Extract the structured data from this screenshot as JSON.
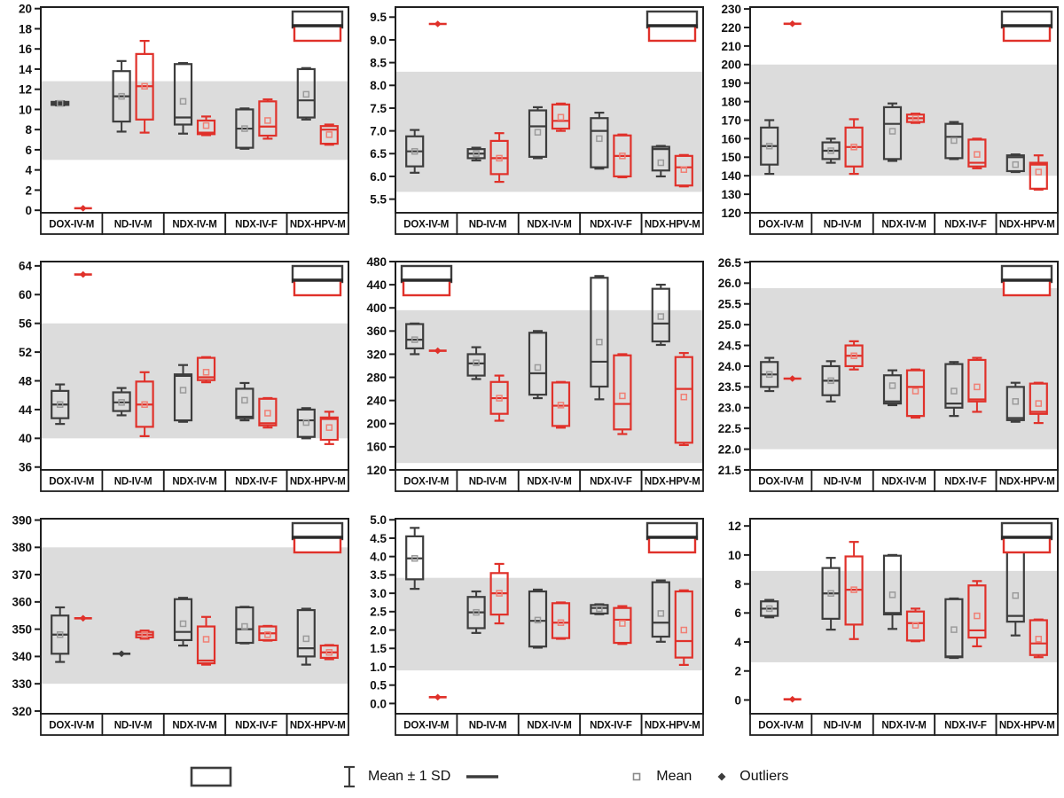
{
  "colors": {
    "black_series": "#3d3d3d",
    "red_series": "#e0312a",
    "band": "#dcdcdc",
    "axis": "#1f1f1f",
    "mean_marker_black": "#9b9b9b",
    "mean_marker_red": "#f08075",
    "label_text": "#111111"
  },
  "categories": [
    "DOX-IV-M",
    "ND-IV-M",
    "NDX-IV-M",
    "NDX-IV-F",
    "NDX-HPV-M"
  ],
  "legend": {
    "sd_label": "Mean ± 1 SD",
    "mean_label": "Mean",
    "outliers_label": "Outliers"
  },
  "box_format": "[whisker_lo, q1, median, mean, q3, whisker_hi] or {dash: value}",
  "chart_data": [
    {
      "type": "boxplot",
      "id": "plot-1",
      "row": 0,
      "col": 0,
      "ylim": [
        -0.25,
        20.15
      ],
      "yticks": [
        0,
        2,
        4,
        6,
        8,
        10,
        12,
        14,
        16,
        18,
        20
      ],
      "decimals": 0,
      "band": [
        5,
        12.8
      ],
      "inset": "tr",
      "series": [
        {
          "name": "black",
          "boxes": [
            [
              10.4,
              10.45,
              10.6,
              10.6,
              10.75,
              10.8
            ],
            [
              7.8,
              8.8,
              11.3,
              11.3,
              13.8,
              14.8
            ],
            [
              7.6,
              8.5,
              9.2,
              10.8,
              14.5,
              14.6
            ],
            [
              6.1,
              6.2,
              8.1,
              8.1,
              10.0,
              10.1
            ],
            [
              9.0,
              9.2,
              10.9,
              11.5,
              14.0,
              14.1
            ]
          ]
        },
        {
          "name": "red",
          "boxes": [
            {
              "dash": 0.2
            },
            [
              7.7,
              9.0,
              12.3,
              12.3,
              15.5,
              16.8
            ],
            [
              7.45,
              7.55,
              7.7,
              8.4,
              8.9,
              9.3
            ],
            [
              7.1,
              7.4,
              8.3,
              8.9,
              10.8,
              11.0
            ],
            [
              6.5,
              6.6,
              8.0,
              7.5,
              8.35,
              8.5
            ]
          ]
        }
      ]
    },
    {
      "type": "boxplot",
      "id": "plot-2",
      "row": 0,
      "col": 1,
      "ylim": [
        5.2,
        9.72
      ],
      "yticks": [
        5.5,
        6.0,
        6.5,
        7.0,
        7.5,
        8.0,
        8.5,
        9.0,
        9.5
      ],
      "decimals": 1,
      "band": [
        5.66,
        8.3
      ],
      "inset": "tr",
      "series": [
        {
          "name": "black",
          "boxes": [
            [
              6.08,
              6.22,
              6.55,
              6.55,
              6.88,
              7.02
            ],
            [
              6.35,
              6.4,
              6.5,
              6.5,
              6.6,
              6.63
            ],
            [
              6.4,
              6.43,
              7.1,
              6.97,
              7.45,
              7.52
            ],
            [
              6.17,
              6.2,
              7.0,
              6.83,
              7.28,
              7.4
            ],
            [
              6.0,
              6.13,
              6.6,
              6.3,
              6.65,
              6.67
            ]
          ]
        },
        {
          "name": "red",
          "boxes": [
            {
              "dash": 9.35
            },
            [
              5.88,
              6.05,
              6.4,
              6.4,
              6.78,
              6.95
            ],
            [
              7.0,
              7.05,
              7.22,
              7.3,
              7.58,
              7.6
            ],
            [
              5.98,
              6.0,
              6.45,
              6.45,
              6.9,
              6.92
            ],
            [
              5.78,
              5.8,
              6.2,
              6.15,
              6.45,
              6.47
            ]
          ]
        }
      ]
    },
    {
      "type": "boxplot",
      "id": "plot-3",
      "row": 0,
      "col": 2,
      "ylim": [
        120,
        231
      ],
      "yticks": [
        120,
        130,
        140,
        150,
        160,
        170,
        180,
        190,
        200,
        210,
        220,
        230
      ],
      "decimals": 0,
      "band": [
        140,
        200
      ],
      "inset": "tr",
      "series": [
        {
          "name": "black",
          "boxes": [
            [
              141,
              146,
              156,
              156,
              166,
              170
            ],
            [
              147,
              149,
              153.5,
              153.5,
              158,
              160
            ],
            [
              148,
              149,
              168,
              164,
              177,
              179
            ],
            [
              149,
              149.5,
              161,
              159,
              168,
              169
            ],
            [
              142,
              142.5,
              150,
              146,
              151,
              151.5
            ]
          ]
        },
        {
          "name": "red",
          "boxes": [
            {
              "dash": 222
            },
            [
              141,
              145,
              155.5,
              155.5,
              166,
              170.5
            ],
            [
              168.5,
              169,
              171,
              171,
              173,
              173.5
            ],
            [
              144,
              145,
              147,
              151.5,
              159.5,
              160
            ],
            [
              132.5,
              133,
              146,
              142,
              147,
              151
            ]
          ]
        }
      ]
    },
    {
      "type": "boxplot",
      "id": "plot-4",
      "row": 1,
      "col": 0,
      "ylim": [
        35.6,
        64.6
      ],
      "yticks": [
        36,
        40,
        44,
        48,
        52,
        56,
        60,
        64
      ],
      "decimals": 0,
      "band": [
        40,
        56
      ],
      "inset": "tr",
      "series": [
        {
          "name": "black",
          "boxes": [
            [
              42,
              42.8,
              44.7,
              44.7,
              46.6,
              47.5
            ],
            [
              43.2,
              43.8,
              45,
              45,
              46.4,
              47
            ],
            [
              42.3,
              42.5,
              48.7,
              46.7,
              48.9,
              50.2
            ],
            [
              42.5,
              42.8,
              43,
              45.3,
              46.9,
              47.7
            ],
            [
              40,
              40.2,
              42.5,
              42.2,
              44,
              44.2
            ]
          ]
        },
        {
          "name": "red",
          "boxes": [
            {
              "dash": 62.8
            },
            [
              40.3,
              41.6,
              44.7,
              44.7,
              47.9,
              49.2
            ],
            [
              47.8,
              48.1,
              48.5,
              49.2,
              51.2,
              51.3
            ],
            [
              41.5,
              41.8,
              42.1,
              43.5,
              45.5,
              45.6
            ],
            [
              39.2,
              39.8,
              42.7,
              41.5,
              42.9,
              43.7
            ]
          ]
        }
      ]
    },
    {
      "type": "boxplot",
      "id": "plot-5",
      "row": 1,
      "col": 1,
      "ylim": [
        120,
        480
      ],
      "yticks": [
        120,
        160,
        200,
        240,
        280,
        320,
        360,
        400,
        440,
        480
      ],
      "decimals": 0,
      "band": [
        132,
        396
      ],
      "inset": "tl",
      "series": [
        {
          "name": "black",
          "boxes": [
            [
              320,
              330,
              345,
              345,
              372,
              373
            ],
            [
              277,
              283,
              304,
              305,
              320,
              332
            ],
            [
              244,
              250,
              287,
              297,
              357,
              360
            ],
            [
              242,
              264,
              307,
              341,
              452,
              455
            ],
            [
              336,
              342,
              373,
              385,
              433,
              440
            ]
          ]
        },
        {
          "name": "red",
          "boxes": [
            {
              "dash": 326
            },
            [
              205,
              217,
              244,
              244,
              272,
              283
            ],
            [
              193,
              196,
              231,
              232,
              271,
              272
            ],
            [
              182,
              190,
              234,
              248,
              318,
              320
            ],
            [
              163,
              167,
              260,
              246,
              315,
              322
            ]
          ]
        }
      ]
    },
    {
      "type": "boxplot",
      "id": "plot-6",
      "row": 1,
      "col": 2,
      "ylim": [
        21.5,
        26.52
      ],
      "yticks": [
        21.5,
        22.0,
        22.5,
        23.0,
        23.5,
        24.0,
        24.5,
        25.0,
        25.5,
        26.0,
        26.5
      ],
      "decimals": 1,
      "band": [
        22.0,
        25.88
      ],
      "inset": "tr",
      "series": [
        {
          "name": "black",
          "boxes": [
            [
              23.4,
              23.5,
              23.8,
              23.8,
              24.1,
              24.2
            ],
            [
              23.15,
              23.3,
              23.65,
              23.65,
              24.0,
              24.12
            ],
            [
              23.06,
              23.1,
              23.15,
              23.53,
              23.78,
              23.9
            ],
            [
              22.8,
              23.0,
              23.1,
              23.4,
              24.05,
              24.1
            ],
            [
              22.66,
              22.7,
              22.75,
              23.15,
              23.5,
              23.6
            ]
          ]
        },
        {
          "name": "red",
          "boxes": [
            {
              "dash": 23.7
            },
            [
              23.92,
              24.0,
              24.25,
              24.25,
              24.5,
              24.6
            ],
            [
              22.76,
              22.8,
              23.5,
              23.4,
              23.9,
              23.92
            ],
            [
              22.9,
              23.15,
              23.2,
              23.5,
              24.15,
              24.2
            ],
            [
              22.63,
              22.85,
              22.9,
              23.1,
              23.58,
              23.6
            ]
          ]
        }
      ]
    },
    {
      "type": "boxplot",
      "id": "plot-7",
      "row": 2,
      "col": 0,
      "ylim": [
        319,
        390.5
      ],
      "yticks": [
        320,
        330,
        340,
        350,
        360,
        370,
        380,
        390
      ],
      "decimals": 0,
      "band": [
        330,
        380
      ],
      "inset": "tr",
      "series": [
        {
          "name": "black",
          "boxes": [
            [
              338,
              341,
              348,
              348,
              355,
              358
            ],
            {
              "dash": 341
            },
            [
              344,
              346,
              349,
              352,
              361,
              361.5
            ],
            [
              344.8,
              345,
              350,
              351,
              358,
              358.2
            ],
            [
              337,
              340,
              343,
              346.5,
              357,
              357.5
            ]
          ]
        },
        {
          "name": "red",
          "boxes": [
            {
              "dash": 354
            },
            [
              346.5,
              347,
              348,
              348,
              349,
              349.5
            ],
            [
              337,
              337.5,
              338.5,
              346.3,
              351,
              354.5
            ],
            [
              345.8,
              346,
              348.5,
              348,
              351,
              351.2
            ],
            [
              339,
              339.5,
              341.5,
              341.5,
              344,
              344.2
            ]
          ]
        }
      ]
    },
    {
      "type": "boxplot",
      "id": "plot-8",
      "row": 2,
      "col": 1,
      "ylim": [
        -0.28,
        5.03
      ],
      "yticks": [
        0.0,
        0.5,
        1.0,
        1.5,
        2.0,
        2.5,
        3.0,
        3.5,
        4.0,
        4.5,
        5.0
      ],
      "decimals": 1,
      "band": [
        0.9,
        3.42
      ],
      "inset": "tr",
      "series": [
        {
          "name": "black",
          "boxes": [
            [
              3.12,
              3.38,
              3.95,
              3.95,
              4.55,
              4.78
            ],
            [
              1.92,
              2.05,
              2.48,
              2.48,
              2.9,
              3.05
            ],
            [
              1.52,
              1.55,
              2.25,
              2.27,
              3.05,
              3.1
            ],
            [
              2.43,
              2.45,
              2.6,
              2.58,
              2.68,
              2.7
            ],
            [
              1.68,
              1.82,
              2.2,
              2.45,
              3.3,
              3.35
            ]
          ]
        },
        {
          "name": "red",
          "boxes": [
            {
              "dash": 0.17
            },
            [
              2.18,
              2.42,
              3.0,
              3.0,
              3.55,
              3.8
            ],
            [
              1.76,
              1.78,
              2.2,
              2.2,
              2.73,
              2.75
            ],
            [
              1.62,
              1.65,
              2.28,
              2.18,
              2.6,
              2.65
            ],
            [
              1.05,
              1.25,
              1.7,
              2.0,
              3.05,
              3.08
            ]
          ]
        }
      ]
    },
    {
      "type": "boxplot",
      "id": "plot-9",
      "row": 2,
      "col": 2,
      "ylim": [
        -0.95,
        12.5
      ],
      "yticks": [
        0,
        2,
        4,
        6,
        8,
        10,
        12
      ],
      "decimals": 0,
      "band": [
        2.6,
        8.9
      ],
      "inset": "tr",
      "series": [
        {
          "name": "black",
          "boxes": [
            [
              5.7,
              5.8,
              6.3,
              6.3,
              6.8,
              6.9
            ],
            [
              4.85,
              5.6,
              7.35,
              7.35,
              9.1,
              9.8
            ],
            [
              4.9,
              5.9,
              6.0,
              7.25,
              9.95,
              10.0
            ],
            [
              2.9,
              2.95,
              3.0,
              4.85,
              6.95,
              7.0
            ],
            [
              4.45,
              5.4,
              5.8,
              7.2,
              10.4,
              10.45
            ]
          ]
        },
        {
          "name": "red",
          "boxes": [
            {
              "dash": 0.05
            },
            [
              4.2,
              5.2,
              7.6,
              7.6,
              9.9,
              10.9
            ],
            [
              4.05,
              4.1,
              5.3,
              5.15,
              6.1,
              6.3
            ],
            [
              3.7,
              4.3,
              4.8,
              5.8,
              7.9,
              8.2
            ],
            [
              2.95,
              3.1,
              3.9,
              4.2,
              5.5,
              5.55
            ]
          ]
        }
      ]
    }
  ]
}
